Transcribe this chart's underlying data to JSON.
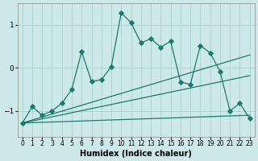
{
  "title": "",
  "xlabel": "Humidex (Indice chaleur)",
  "xlim": [
    -0.5,
    23.5
  ],
  "ylim": [
    -1.6,
    1.5
  ],
  "yticks": [
    -1,
    0,
    1
  ],
  "xticks": [
    0,
    1,
    2,
    3,
    4,
    5,
    6,
    7,
    8,
    9,
    10,
    11,
    12,
    13,
    14,
    15,
    16,
    17,
    18,
    19,
    20,
    21,
    22,
    23
  ],
  "background_color": "#cce8e8",
  "grid_color": "#aacfcf",
  "line_color": "#1a7a6e",
  "main_x": [
    0,
    1,
    2,
    3,
    4,
    5,
    6,
    7,
    8,
    9,
    10,
    11,
    12,
    13,
    14,
    15,
    16,
    17,
    18,
    19,
    20,
    21,
    22,
    23
  ],
  "main_y": [
    -1.28,
    -0.9,
    -1.1,
    -1.0,
    -0.82,
    -0.5,
    0.38,
    -0.32,
    -0.27,
    0.03,
    1.28,
    1.05,
    0.58,
    0.68,
    0.48,
    0.62,
    -0.33,
    -0.38,
    0.52,
    0.35,
    -0.08,
    -1.0,
    -0.82,
    -1.18
  ],
  "trend1_x": [
    0,
    23
  ],
  "trend1_y": [
    -1.28,
    -1.1
  ],
  "trend2_x": [
    0,
    23
  ],
  "trend2_y": [
    -1.28,
    -0.18
  ],
  "trend3_x": [
    0,
    23
  ],
  "trend3_y": [
    -1.28,
    0.3
  ],
  "marker_size": 2.8,
  "line_width": 0.9,
  "xlabel_fontsize": 7,
  "tick_fontsize": 5.5
}
